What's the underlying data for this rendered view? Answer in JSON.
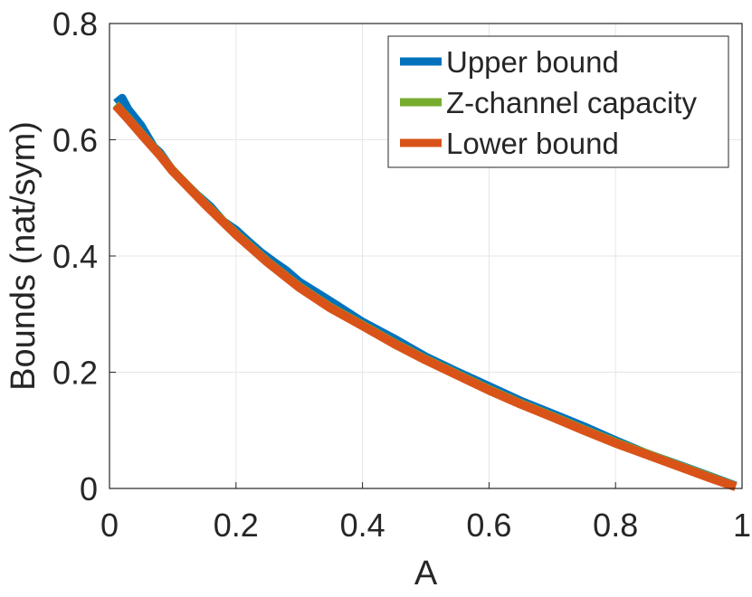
{
  "chart_data": {
    "type": "line",
    "xlabel": "A",
    "ylabel": "Bounds (nat/sym)",
    "xlim": [
      0,
      1
    ],
    "ylim": [
      0,
      0.8
    ],
    "grid": true,
    "legend_location": "top-right",
    "x_ticks": [
      "0",
      "0.2",
      "0.4",
      "0.6",
      "0.8",
      "1"
    ],
    "y_ticks": [
      "0",
      "0.2",
      "0.4",
      "0.6",
      "0.8"
    ],
    "x_tick_values": [
      0,
      0.2,
      0.4,
      0.6,
      0.8,
      1
    ],
    "y_tick_values": [
      0,
      0.2,
      0.4,
      0.6,
      0.8
    ],
    "series": [
      {
        "name": "Upper bound",
        "color": "#0072BD",
        "x": [
          0.01,
          0.02,
          0.03,
          0.05,
          0.07,
          0.08,
          0.1,
          0.12,
          0.14,
          0.16,
          0.18,
          0.2,
          0.22,
          0.24,
          0.26,
          0.28,
          0.3,
          0.35,
          0.4,
          0.45,
          0.5,
          0.55,
          0.6,
          0.65,
          0.7,
          0.75,
          0.8,
          0.85,
          0.9,
          0.95,
          0.99
        ],
        "y": [
          0.663,
          0.672,
          0.652,
          0.625,
          0.588,
          0.578,
          0.547,
          0.525,
          0.504,
          0.485,
          0.46,
          0.445,
          0.425,
          0.406,
          0.39,
          0.375,
          0.356,
          0.322,
          0.287,
          0.258,
          0.227,
          0.201,
          0.176,
          0.151,
          0.129,
          0.107,
          0.083,
          0.06,
          0.041,
          0.021,
          0.005
        ]
      },
      {
        "name": "Z-channel capacity",
        "color": "#77AC30",
        "x": [
          0.01,
          0.03,
          0.05,
          0.08,
          0.1,
          0.15,
          0.2,
          0.25,
          0.3,
          0.35,
          0.4,
          0.45,
          0.5,
          0.55,
          0.6,
          0.65,
          0.7,
          0.75,
          0.8,
          0.85,
          0.9,
          0.95,
          0.99
        ],
        "y": [
          0.661,
          0.637,
          0.612,
          0.575,
          0.548,
          0.492,
          0.439,
          0.391,
          0.348,
          0.312,
          0.282,
          0.251,
          0.223,
          0.197,
          0.171,
          0.147,
          0.125,
          0.102,
          0.08,
          0.06,
          0.04,
          0.02,
          0.004
        ]
      },
      {
        "name": "Lower bound",
        "color": "#D95319",
        "x": [
          0.01,
          0.03,
          0.05,
          0.08,
          0.1,
          0.15,
          0.2,
          0.25,
          0.3,
          0.35,
          0.4,
          0.45,
          0.5,
          0.55,
          0.6,
          0.65,
          0.7,
          0.75,
          0.8,
          0.85,
          0.9,
          0.95,
          0.99
        ],
        "y": [
          0.659,
          0.635,
          0.61,
          0.573,
          0.546,
          0.49,
          0.437,
          0.389,
          0.346,
          0.31,
          0.28,
          0.249,
          0.221,
          0.195,
          0.169,
          0.145,
          0.123,
          0.1,
          0.078,
          0.058,
          0.038,
          0.018,
          0.003
        ]
      }
    ]
  }
}
